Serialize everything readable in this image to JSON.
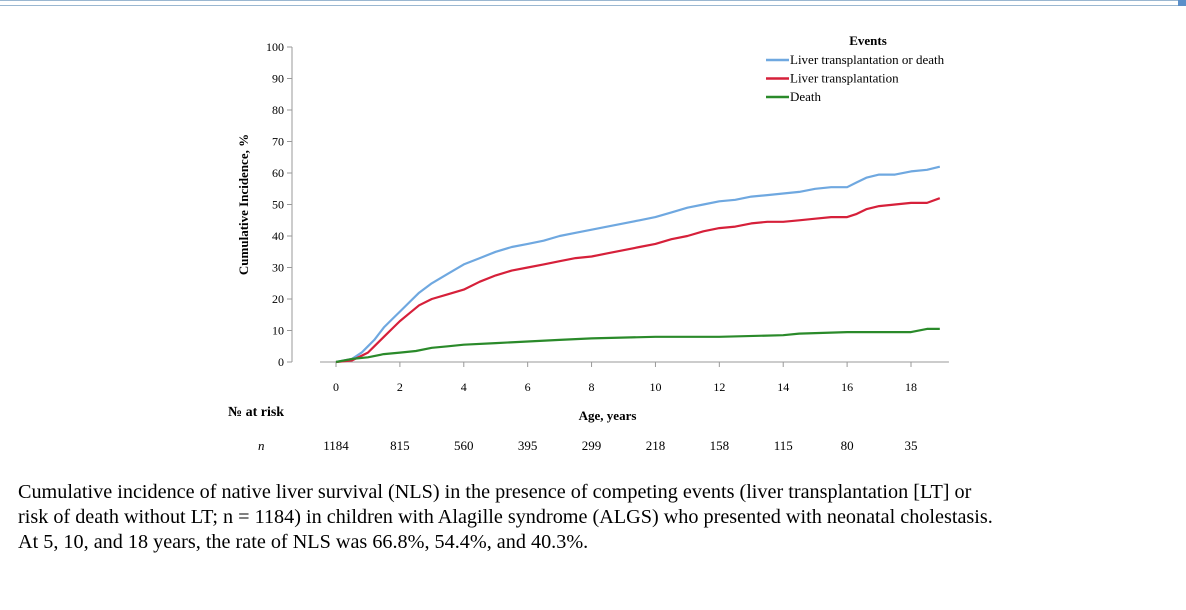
{
  "chart_data": {
    "type": "line",
    "xlabel": "Age, years",
    "ylabel": "Cumulative Incidence, %",
    "xlim": [
      -0.5,
      19
    ],
    "ylim": [
      0,
      100
    ],
    "x_ticks": [
      0,
      2,
      4,
      6,
      8,
      10,
      12,
      14,
      16,
      18
    ],
    "y_ticks": [
      0,
      10,
      20,
      30,
      40,
      50,
      60,
      70,
      80,
      90,
      100
    ],
    "legend": {
      "title": "Events",
      "position": "top-right"
    },
    "series": [
      {
        "name": "Liver transplantation or death",
        "color": "#6fa8e0",
        "x": [
          0,
          0.5,
          0.8,
          1.0,
          1.2,
          1.5,
          1.8,
          2.0,
          2.3,
          2.6,
          3.0,
          3.5,
          4.0,
          4.5,
          5.0,
          5.5,
          6.0,
          6.5,
          7.0,
          7.5,
          8.0,
          8.5,
          9.0,
          9.5,
          10.0,
          10.5,
          11.0,
          11.5,
          12.0,
          12.5,
          13.0,
          13.5,
          14.0,
          14.5,
          15.0,
          15.5,
          16.0,
          16.3,
          16.6,
          17.0,
          17.5,
          18.0,
          18.5,
          18.9
        ],
        "y": [
          0,
          1,
          3,
          5,
          7,
          11,
          14,
          16,
          19,
          22,
          25,
          28,
          31,
          33,
          35,
          36.5,
          37.5,
          38.5,
          40,
          41,
          42,
          43,
          44,
          45,
          46,
          47.5,
          49,
          50,
          51,
          51.5,
          52.5,
          53,
          53.5,
          54,
          55,
          55.5,
          55.5,
          57,
          58.5,
          59.5,
          59.5,
          60.5,
          61,
          62
        ]
      },
      {
        "name": "Liver transplantation",
        "color": "#d6203a",
        "x": [
          0,
          0.5,
          0.8,
          1.0,
          1.2,
          1.5,
          1.8,
          2.0,
          2.3,
          2.6,
          3.0,
          3.5,
          4.0,
          4.5,
          5.0,
          5.5,
          6.0,
          6.5,
          7.0,
          7.5,
          8.0,
          8.5,
          9.0,
          9.5,
          10.0,
          10.5,
          11.0,
          11.5,
          12.0,
          12.5,
          13.0,
          13.5,
          14.0,
          14.5,
          15.0,
          15.5,
          16.0,
          16.3,
          16.6,
          17.0,
          17.5,
          18.0,
          18.5,
          18.9
        ],
        "y": [
          0,
          0.5,
          2,
          3,
          5,
          8,
          11,
          13,
          15.5,
          18,
          20,
          21.5,
          23,
          25.5,
          27.5,
          29,
          30,
          31,
          32,
          33,
          33.5,
          34.5,
          35.5,
          36.5,
          37.5,
          39,
          40,
          41.5,
          42.5,
          43,
          44,
          44.5,
          44.5,
          45,
          45.5,
          46,
          46,
          47,
          48.5,
          49.5,
          50,
          50.5,
          50.5,
          52
        ]
      },
      {
        "name": "Death",
        "color": "#2a8a2a",
        "x": [
          0,
          0.5,
          1.0,
          1.5,
          2.0,
          2.5,
          3.0,
          3.5,
          4.0,
          5.0,
          6.0,
          7.0,
          8.0,
          10.0,
          12.0,
          14.0,
          14.5,
          16.0,
          17.0,
          18.0,
          18.5,
          18.9
        ],
        "y": [
          0,
          1,
          1.5,
          2.5,
          3,
          3.5,
          4.5,
          5,
          5.5,
          6,
          6.5,
          7,
          7.5,
          8,
          8,
          8.5,
          9,
          9.5,
          9.5,
          9.5,
          10.5,
          10.5
        ]
      }
    ],
    "at_risk": {
      "title": "№ at risk",
      "row_label": "n",
      "values": [
        "1184",
        "815",
        "560",
        "395",
        "299",
        "218",
        "158",
        "115",
        "80",
        "35"
      ]
    }
  },
  "caption": {
    "line1": "Cumulative incidence of native liver survival (NLS) in the presence of competing events (liver transplantation [LT] or",
    "line2": "risk of death without LT; n = 1184) in children with Alagille syndrome (ALGS) who presented with neonatal cholestasis.",
    "line3": "At 5, 10, and 18 years, the rate of NLS was 66.8%, 54.4%, and 40.3%."
  }
}
